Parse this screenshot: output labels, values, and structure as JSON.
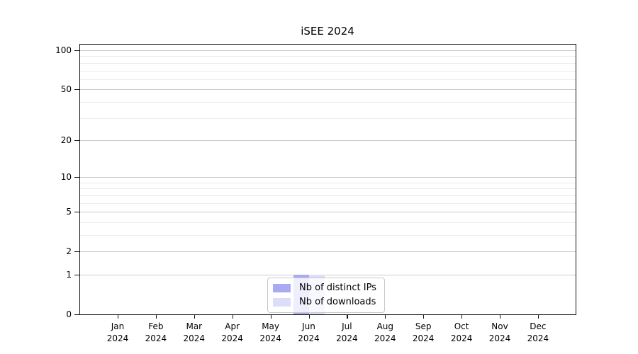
{
  "chart_data": {
    "type": "bar",
    "title": "iSEE 2024",
    "year_label": "2024",
    "categories": [
      "Jan",
      "Feb",
      "Mar",
      "Apr",
      "May",
      "Jun",
      "Jul",
      "Aug",
      "Sep",
      "Oct",
      "Nov",
      "Dec"
    ],
    "series": [
      {
        "name": "Nb of distinct IPs",
        "color": "#a9abf2",
        "values": [
          0,
          0,
          0,
          0,
          0,
          1,
          0,
          0,
          0,
          0,
          0,
          0
        ]
      },
      {
        "name": "Nb of downloads",
        "color": "#dcdef8",
        "values": [
          0,
          0,
          0,
          0,
          0,
          1,
          0,
          0,
          0,
          0,
          0,
          0
        ]
      }
    ],
    "xlabel": "",
    "ylabel": "",
    "yscale": "log1p",
    "ylim": [
      0,
      111
    ],
    "yticks": [
      0,
      1,
      2,
      5,
      10,
      20,
      50,
      100
    ],
    "gridlines_major": [
      1,
      2,
      5,
      10,
      20,
      50,
      100
    ],
    "gridlines_minor": [
      3,
      4,
      6,
      7,
      8,
      9,
      30,
      40,
      60,
      70,
      80,
      90
    ],
    "grid": "horizontal",
    "legend_position": "lower center"
  },
  "colors": {
    "background": "#ffffff",
    "spine": "#121212",
    "grid_major": "#c9c9c9",
    "grid_minor": "#ebebeb",
    "legend_border": "#c8c8c8"
  }
}
